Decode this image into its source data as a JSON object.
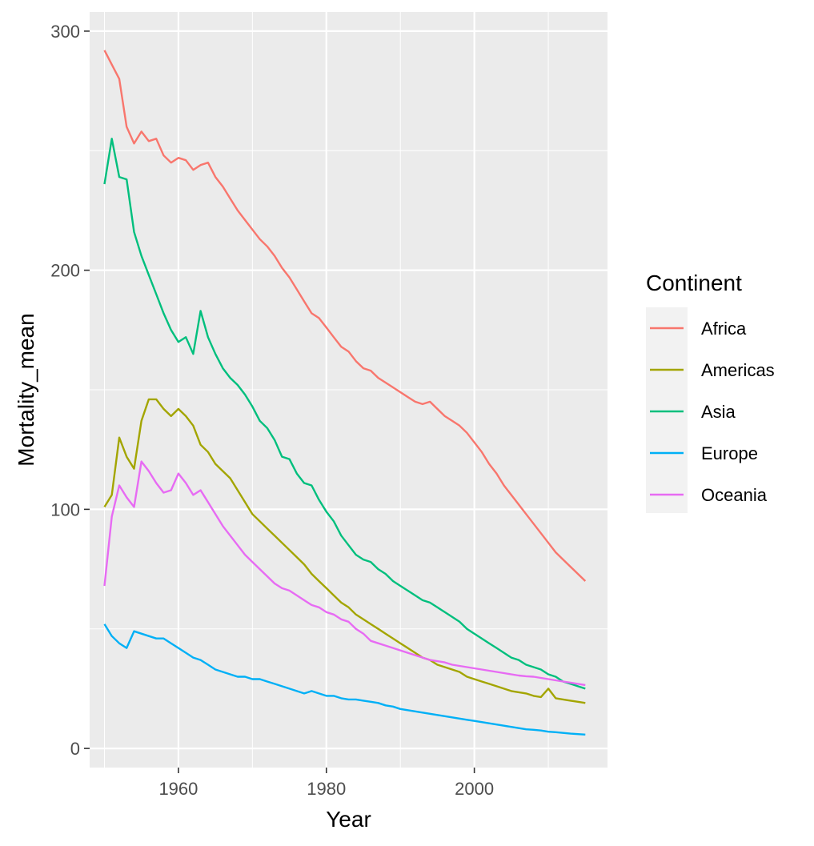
{
  "chart_data": {
    "type": "line",
    "title": "",
    "xlabel": "Year",
    "ylabel": "Mortality_mean",
    "xlim": [
      1948,
      2018
    ],
    "ylim": [
      -8,
      308
    ],
    "x_ticks": [
      1960,
      1980,
      2000
    ],
    "y_ticks": [
      0,
      100,
      200,
      300
    ],
    "grid": true,
    "legend": {
      "title": "Continent",
      "position": "right"
    },
    "x": [
      1950,
      1951,
      1952,
      1953,
      1954,
      1955,
      1956,
      1957,
      1958,
      1959,
      1960,
      1961,
      1962,
      1963,
      1964,
      1965,
      1966,
      1967,
      1968,
      1969,
      1970,
      1971,
      1972,
      1973,
      1974,
      1975,
      1976,
      1977,
      1978,
      1979,
      1980,
      1981,
      1982,
      1983,
      1984,
      1985,
      1986,
      1987,
      1988,
      1989,
      1990,
      1991,
      1992,
      1993,
      1994,
      1995,
      1996,
      1997,
      1998,
      1999,
      2000,
      2001,
      2002,
      2003,
      2004,
      2005,
      2006,
      2007,
      2008,
      2009,
      2010,
      2011,
      2012,
      2013,
      2014,
      2015
    ],
    "series": [
      {
        "name": "Africa",
        "color": "#F8766D",
        "values": [
          292,
          286,
          280,
          260,
          253,
          258,
          254,
          255,
          248,
          245,
          247,
          246,
          242,
          244,
          245,
          239,
          235,
          230,
          225,
          221,
          217,
          213,
          210,
          206,
          201,
          197,
          192,
          187,
          182,
          180,
          176,
          172,
          168,
          166,
          162,
          159,
          158,
          155,
          153,
          151,
          149,
          147,
          145,
          144,
          145,
          142,
          139,
          137,
          135,
          132,
          128,
          124,
          119,
          115,
          110,
          106,
          102,
          98,
          94,
          90,
          86,
          82,
          79,
          76,
          73,
          70
        ]
      },
      {
        "name": "Americas",
        "color": "#A3A500",
        "values": [
          101,
          106,
          130,
          122,
          117,
          137,
          146,
          146,
          142,
          139,
          142,
          139,
          135,
          127,
          124,
          119,
          116,
          113,
          108,
          103,
          98,
          95,
          92,
          89,
          86,
          83,
          80,
          77,
          73,
          70,
          67,
          64,
          61,
          59,
          56,
          54,
          52,
          50,
          48,
          46,
          44,
          42,
          40,
          38,
          37,
          35,
          34,
          33,
          32,
          30,
          29,
          28,
          27,
          26,
          25,
          24,
          23.5,
          23,
          22,
          21.5,
          25,
          21,
          20.5,
          20,
          19.5,
          19
        ]
      },
      {
        "name": "Asia",
        "color": "#00BF7D",
        "values": [
          236,
          255,
          239,
          238,
          216,
          206,
          198,
          190,
          182,
          175,
          170,
          172,
          165,
          183,
          172,
          165,
          159,
          155,
          152,
          148,
          143,
          137,
          134,
          129,
          122,
          121,
          115,
          111,
          110,
          104,
          99,
          95,
          89,
          85,
          81,
          79,
          78,
          75,
          73,
          70,
          68,
          66,
          64,
          62,
          61,
          59,
          57,
          55,
          53,
          50,
          48,
          46,
          44,
          42,
          40,
          38,
          37,
          35,
          34,
          33,
          31,
          30,
          28,
          27,
          26,
          25
        ]
      },
      {
        "name": "Europe",
        "color": "#00B0F6",
        "values": [
          52,
          47,
          44,
          42,
          49,
          48,
          47,
          46,
          46,
          44,
          42,
          40,
          38,
          37,
          35,
          33,
          32,
          31,
          30,
          30,
          29,
          29,
          28,
          27,
          26,
          25,
          24,
          23,
          24,
          23,
          22,
          22,
          21,
          20.5,
          20.5,
          20,
          19.5,
          19,
          18,
          17.5,
          16.5,
          16,
          15.5,
          15,
          14.5,
          14,
          13.5,
          13,
          12.5,
          12,
          11.5,
          11,
          10.5,
          10,
          9.5,
          9,
          8.5,
          8,
          7.8,
          7.5,
          7,
          6.8,
          6.5,
          6.2,
          6,
          5.8
        ]
      },
      {
        "name": "Oceania",
        "color": "#E76BF3",
        "values": [
          68,
          97,
          110,
          105,
          101,
          120,
          116,
          111,
          107,
          108,
          115,
          111,
          106,
          108,
          103,
          98,
          93,
          89,
          85,
          81,
          78,
          75,
          72,
          69,
          67,
          66,
          64,
          62,
          60,
          59,
          57,
          56,
          54,
          53,
          50,
          48,
          45,
          44,
          43,
          42,
          41,
          40,
          39,
          38,
          37,
          36.5,
          36,
          35,
          34.5,
          34,
          33.5,
          33,
          32.5,
          32,
          31.5,
          31,
          30.5,
          30.2,
          30,
          29.5,
          29,
          28.5,
          28,
          27.5,
          27,
          26.5
        ]
      }
    ]
  }
}
